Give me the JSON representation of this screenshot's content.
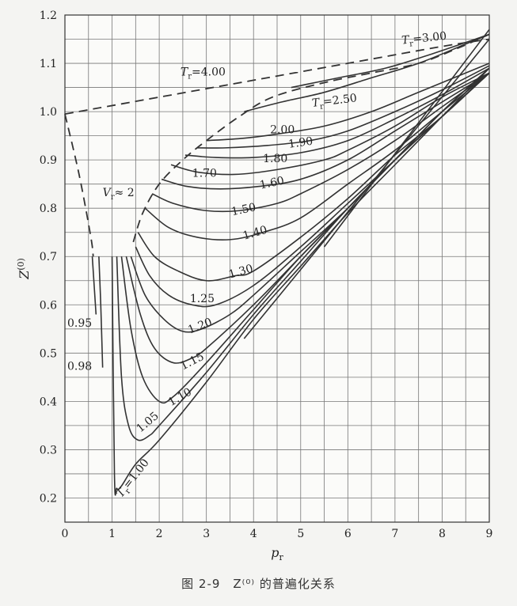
{
  "chart_data": {
    "type": "line",
    "xlabel": "p_r",
    "ylabel": "Z^(0)",
    "xlim": [
      0,
      9
    ],
    "ylim": [
      0.15,
      1.2
    ],
    "x_ticks": [
      0,
      1,
      2,
      3,
      4,
      5,
      6,
      7,
      8,
      9
    ],
    "y_ticks": [
      0.2,
      0.3,
      0.4,
      0.5,
      0.6,
      0.7,
      0.8,
      0.9,
      1.0,
      1.1,
      1.2
    ],
    "grid": true,
    "series": [
      {
        "name": "T_r=1.00",
        "style": "solid",
        "points": [
          [
            1.0,
            0.7
          ],
          [
            1.05,
            0.25
          ],
          [
            1.1,
            0.22
          ],
          [
            1.2,
            0.225
          ],
          [
            1.5,
            0.27
          ],
          [
            2,
            0.32
          ],
          [
            3,
            0.44
          ],
          [
            4,
            0.57
          ],
          [
            5,
            0.68
          ],
          [
            6,
            0.79
          ],
          [
            7,
            0.89
          ],
          [
            8,
            0.99
          ],
          [
            9,
            1.09
          ]
        ]
      },
      {
        "name": "0.98",
        "style": "solid",
        "points": [
          [
            0.72,
            0.7
          ],
          [
            0.76,
            0.6
          ],
          [
            0.8,
            0.47
          ]
        ]
      },
      {
        "name": "0.95",
        "style": "solid",
        "points": [
          [
            0.58,
            0.7
          ],
          [
            0.62,
            0.64
          ],
          [
            0.66,
            0.58
          ]
        ]
      },
      {
        "name": "1.05",
        "style": "solid",
        "points": [
          [
            1.1,
            0.7
          ],
          [
            1.2,
            0.45
          ],
          [
            1.35,
            0.35
          ],
          [
            1.55,
            0.32
          ],
          [
            1.8,
            0.33
          ],
          [
            2,
            0.35
          ],
          [
            3,
            0.46
          ],
          [
            4,
            0.58
          ],
          [
            5,
            0.69
          ],
          [
            6,
            0.8
          ],
          [
            7,
            0.9
          ],
          [
            8,
            1.0
          ],
          [
            9,
            1.09
          ]
        ]
      },
      {
        "name": "1.10",
        "style": "solid",
        "points": [
          [
            1.2,
            0.7
          ],
          [
            1.4,
            0.55
          ],
          [
            1.65,
            0.45
          ],
          [
            2,
            0.4
          ],
          [
            2.3,
            0.41
          ],
          [
            3,
            0.48
          ],
          [
            4,
            0.59
          ],
          [
            5,
            0.7
          ],
          [
            6,
            0.8
          ],
          [
            7,
            0.9
          ],
          [
            8,
            1.0
          ],
          [
            9,
            1.09
          ]
        ]
      },
      {
        "name": "1.15",
        "style": "solid",
        "points": [
          [
            1.3,
            0.7
          ],
          [
            1.6,
            0.58
          ],
          [
            1.9,
            0.51
          ],
          [
            2.3,
            0.48
          ],
          [
            2.7,
            0.49
          ],
          [
            3,
            0.51
          ],
          [
            4,
            0.6
          ],
          [
            5,
            0.7
          ],
          [
            6,
            0.8
          ],
          [
            7,
            0.9
          ],
          [
            8,
            0.99
          ],
          [
            9,
            1.08
          ]
        ]
      },
      {
        "name": "1.20",
        "style": "solid",
        "points": [
          [
            1.4,
            0.7
          ],
          [
            1.7,
            0.62
          ],
          [
            2.1,
            0.57
          ],
          [
            2.5,
            0.545
          ],
          [
            2.9,
            0.55
          ],
          [
            3.5,
            0.58
          ],
          [
            4,
            0.62
          ],
          [
            5,
            0.71
          ],
          [
            6,
            0.8
          ],
          [
            7,
            0.9
          ],
          [
            8,
            0.99
          ],
          [
            9,
            1.08
          ]
        ]
      },
      {
        "name": "1.25",
        "style": "solid",
        "points": [
          [
            1.5,
            0.72
          ],
          [
            1.8,
            0.66
          ],
          [
            2.2,
            0.62
          ],
          [
            2.7,
            0.6
          ],
          [
            3.2,
            0.6
          ],
          [
            4,
            0.64
          ],
          [
            5,
            0.72
          ],
          [
            6,
            0.81
          ],
          [
            7,
            0.9
          ],
          [
            8,
            0.99
          ],
          [
            9,
            1.08
          ]
        ]
      },
      {
        "name": "1.30",
        "style": "solid",
        "points": [
          [
            1.55,
            0.75
          ],
          [
            1.9,
            0.7
          ],
          [
            2.4,
            0.67
          ],
          [
            3,
            0.65
          ],
          [
            3.6,
            0.66
          ],
          [
            4,
            0.67
          ],
          [
            5,
            0.74
          ],
          [
            6,
            0.82
          ],
          [
            7,
            0.91
          ],
          [
            8,
            0.99
          ],
          [
            9,
            1.08
          ]
        ]
      },
      {
        "name": "1.40",
        "style": "solid",
        "points": [
          [
            1.7,
            0.8
          ],
          [
            2.2,
            0.76
          ],
          [
            2.8,
            0.74
          ],
          [
            3.5,
            0.735
          ],
          [
            4.2,
            0.75
          ],
          [
            5,
            0.78
          ],
          [
            6,
            0.85
          ],
          [
            7,
            0.92
          ],
          [
            8,
            1.0
          ],
          [
            9,
            1.08
          ]
        ]
      },
      {
        "name": "1.50",
        "style": "solid",
        "points": [
          [
            1.85,
            0.83
          ],
          [
            2.3,
            0.81
          ],
          [
            3,
            0.795
          ],
          [
            3.7,
            0.795
          ],
          [
            4.5,
            0.81
          ],
          [
            5,
            0.83
          ],
          [
            6,
            0.88
          ],
          [
            7,
            0.94
          ],
          [
            8,
            1.01
          ],
          [
            9,
            1.08
          ]
        ]
      },
      {
        "name": "1.60",
        "style": "solid",
        "points": [
          [
            2.05,
            0.86
          ],
          [
            2.6,
            0.845
          ],
          [
            3.3,
            0.84
          ],
          [
            4.1,
            0.845
          ],
          [
            5,
            0.86
          ],
          [
            6,
            0.9
          ],
          [
            7,
            0.96
          ],
          [
            8,
            1.02
          ],
          [
            9,
            1.08
          ]
        ]
      },
      {
        "name": "1.70",
        "style": "solid",
        "points": [
          [
            2.25,
            0.89
          ],
          [
            2.8,
            0.875
          ],
          [
            3.6,
            0.87
          ],
          [
            4.5,
            0.88
          ],
          [
            5.5,
            0.9
          ],
          [
            6,
            0.92
          ],
          [
            7,
            0.97
          ],
          [
            8,
            1.03
          ],
          [
            9,
            1.08
          ]
        ]
      },
      {
        "name": "1.80",
        "style": "solid",
        "points": [
          [
            2.55,
            0.91
          ],
          [
            3.2,
            0.905
          ],
          [
            4,
            0.905
          ],
          [
            5,
            0.915
          ],
          [
            6,
            0.94
          ],
          [
            7,
            0.985
          ],
          [
            8,
            1.035
          ],
          [
            9,
            1.09
          ]
        ]
      },
      {
        "name": "1.90",
        "style": "solid",
        "points": [
          [
            2.8,
            0.925
          ],
          [
            3.4,
            0.925
          ],
          [
            4.3,
            0.93
          ],
          [
            5.2,
            0.94
          ],
          [
            6,
            0.96
          ],
          [
            7,
            1.0
          ],
          [
            8,
            1.045
          ],
          [
            9,
            1.095
          ]
        ]
      },
      {
        "name": "2.00",
        "style": "solid",
        "points": [
          [
            3.0,
            0.94
          ],
          [
            3.8,
            0.945
          ],
          [
            4.6,
            0.955
          ],
          [
            5.5,
            0.97
          ],
          [
            6.5,
            1.0
          ],
          [
            7.5,
            1.04
          ],
          [
            9,
            1.1
          ]
        ]
      },
      {
        "name": "T_r=2.50",
        "style": "solid",
        "points": [
          [
            3.8,
            1.0
          ],
          [
            4.6,
            1.02
          ],
          [
            5.5,
            1.04
          ],
          [
            6.5,
            1.07
          ],
          [
            7.5,
            1.1
          ],
          [
            8.5,
            1.14
          ],
          [
            9,
            1.16
          ]
        ]
      },
      {
        "name": "T_r=3.00",
        "style": "solid",
        "points": [
          [
            4.8,
            1.05
          ],
          [
            5.8,
            1.07
          ],
          [
            6.8,
            1.09
          ],
          [
            7.8,
            1.12
          ],
          [
            9,
            1.16
          ]
        ]
      },
      {
        "name": "T_r=4.00",
        "style": "dashed",
        "points": [
          [
            0,
            0.995
          ],
          [
            2,
            1.03
          ],
          [
            4,
            1.065
          ],
          [
            6,
            1.1
          ],
          [
            8,
            1.135
          ],
          [
            9,
            1.15
          ]
        ]
      },
      {
        "name": "V_r≈2",
        "style": "dashed",
        "points": [
          [
            0,
            0.995
          ],
          [
            0.3,
            0.87
          ],
          [
            0.55,
            0.74
          ],
          [
            0.6,
            0.7
          ]
        ]
      },
      {
        "name": "boundary",
        "style": "dashed",
        "points": [
          [
            1.45,
            0.73
          ],
          [
            1.65,
            0.79
          ],
          [
            2.0,
            0.85
          ],
          [
            2.5,
            0.9
          ],
          [
            3.0,
            0.94
          ],
          [
            3.7,
            0.99
          ],
          [
            4.4,
            1.03
          ],
          [
            5.5,
            1.06
          ],
          [
            6.5,
            1.08
          ],
          [
            7.5,
            1.1
          ],
          [
            8.3,
            1.13
          ],
          [
            9,
            1.16
          ]
        ]
      }
    ],
    "limits": [
      {
        "name": "limit-a",
        "style": "solid",
        "points": [
          [
            3.8,
            0.53
          ],
          [
            9,
            1.15
          ]
        ]
      },
      {
        "name": "limit-b",
        "style": "solid",
        "points": [
          [
            5.5,
            0.72
          ],
          [
            9,
            1.17
          ]
        ]
      }
    ],
    "labels": [
      {
        "text": "T",
        "sub": "r",
        "rest": "=4.00",
        "x": 2.45,
        "y": 1.075,
        "rot": 0
      },
      {
        "text": "T",
        "sub": "r",
        "rest": "=3.00",
        "x": 7.15,
        "y": 1.14,
        "rot": -6
      },
      {
        "text": "T",
        "sub": "r",
        "rest": "=2.50",
        "x": 5.25,
        "y": 1.01,
        "rot": -7
      },
      {
        "text": "2.00",
        "rest": "",
        "x": 4.35,
        "y": 0.955,
        "rot": 0
      },
      {
        "text": "1.90",
        "rest": "",
        "x": 4.75,
        "y": 0.925,
        "rot": -8
      },
      {
        "text": "1.80",
        "rest": "",
        "x": 4.2,
        "y": 0.895,
        "rot": 0
      },
      {
        "text": "1.70",
        "rest": "",
        "x": 2.7,
        "y": 0.865,
        "rot": 0
      },
      {
        "text": "1.60",
        "rest": "",
        "x": 4.15,
        "y": 0.84,
        "rot": -12
      },
      {
        "text": "1.50",
        "rest": "",
        "x": 3.55,
        "y": 0.785,
        "rot": -12
      },
      {
        "text": "1.40",
        "rest": "",
        "x": 3.8,
        "y": 0.735,
        "rot": -16
      },
      {
        "text": "1.30",
        "rest": "",
        "x": 3.5,
        "y": 0.655,
        "rot": -16
      },
      {
        "text": "1.25",
        "rest": "",
        "x": 2.65,
        "y": 0.605,
        "rot": 0
      },
      {
        "text": "1.20",
        "rest": "",
        "x": 2.65,
        "y": 0.54,
        "rot": -22
      },
      {
        "text": "1.15",
        "rest": "",
        "x": 2.5,
        "y": 0.465,
        "rot": -27
      },
      {
        "text": "1.10",
        "rest": "",
        "x": 2.25,
        "y": 0.39,
        "rot": -30
      },
      {
        "text": "1.05",
        "rest": "",
        "x": 1.6,
        "y": 0.335,
        "rot": -40
      },
      {
        "text": "0.95",
        "rest": "",
        "x": 0.05,
        "y": 0.555,
        "rot": 0
      },
      {
        "text": "0.98",
        "rest": "",
        "x": 0.05,
        "y": 0.465,
        "rot": 0
      },
      {
        "text": "T",
        "sub": "r",
        "rest": "=1.00",
        "x": 1.2,
        "y": 0.2,
        "rot": -52
      },
      {
        "text": "V",
        "sub": "r",
        "rest": "≈ 2",
        "x": 0.8,
        "y": 0.825,
        "rot": 0
      }
    ]
  },
  "caption": "图 2-9　Z⁽⁰⁾ 的普遍化关系"
}
